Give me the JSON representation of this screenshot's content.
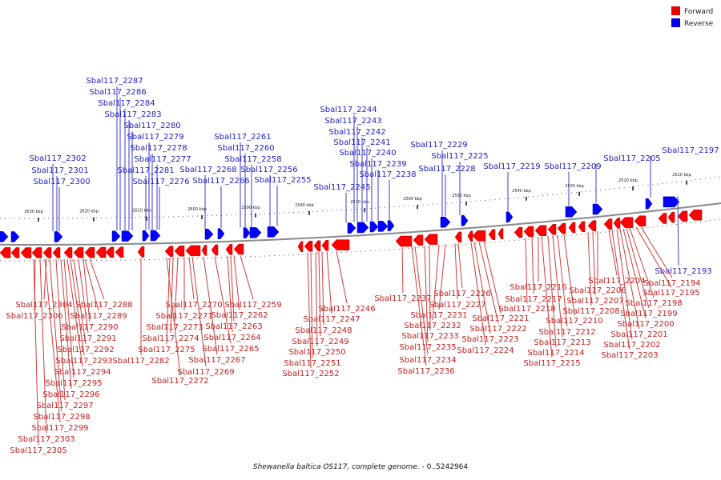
{
  "legend": {
    "forward_label": "Forward",
    "reverse_label": "Reverse",
    "forward_color": "#ff0000",
    "reverse_color": "#0000ff"
  },
  "caption": {
    "genome": "Shewanella baltica OS117, complete genome.",
    "range": "- 0..5242964"
  },
  "colors": {
    "forward_label": "#c81e1e",
    "reverse_label": "#1e1ec8",
    "backbone": "#8a8a8a",
    "pointer": "#3c3cd2",
    "pointer_forward": "#d23c3c"
  },
  "scale_labels": [
    "2630 kbp",
    "2620 kbp",
    "2610 kbp",
    "2600 kbp",
    "2590 kbp",
    "2580 kbp",
    "2570 kbp",
    "2560 kbp",
    "2550 kbp",
    "2540 kbp",
    "2530 kbp",
    "2520 kbp",
    "2510 kbp"
  ],
  "reverse_genes": [
    "Sbal117_2287",
    "Sbal117_2286",
    "Sbal117_2284",
    "Sbal117_2283",
    "Sbal117_2280",
    "Sbal117_2279",
    "Sbal117_2278",
    "Sbal117_2277",
    "Sbal117_2281",
    "Sbal117_2276",
    "Sbal117_2302",
    "Sbal117_2301",
    "Sbal117_2300",
    "Sbal117_2261",
    "Sbal117_2260",
    "Sbal117_2258",
    "Sbal117_2268",
    "Sbal117_2256",
    "Sbal117_2266",
    "Sbal117_2255",
    "Sbal117_2244",
    "Sbal117_2243",
    "Sbal117_2242",
    "Sbal117_2241",
    "Sbal117_2240",
    "Sbal117_2239",
    "Sbal117_2238",
    "Sbal117_2245",
    "Sbal117_2229",
    "Sbal117_2225",
    "Sbal117_2228",
    "Sbal117_2219",
    "Sbal117_2209",
    "Sbal117_2205",
    "Sbal117_2197",
    "Sbal117_2193"
  ],
  "forward_genes": [
    "Sbal117_2304",
    "Sbal117_2306",
    "Sbal117_2288",
    "Sbal117_2289",
    "Sbal117_2290",
    "Sbal117_2291",
    "Sbal117_2292",
    "Sbal117_2293",
    "Sbal117_2294",
    "Sbal117_2295",
    "Sbal117_2296",
    "Sbal117_2297",
    "Sbal117_2298",
    "Sbal117_2299",
    "Sbal117_2303",
    "Sbal117_2305",
    "Sbal117_2282",
    "Sbal117_2270",
    "Sbal117_2271",
    "Sbal117_2273",
    "Sbal117_2274",
    "Sbal117_2275",
    "Sbal117_2272",
    "Sbal117_2269",
    "Sbal117_2267",
    "Sbal117_2265",
    "Sbal117_2264",
    "Sbal117_2263",
    "Sbal117_2262",
    "Sbal117_2259",
    "Sbal117_2246",
    "Sbal117_2247",
    "Sbal117_2248",
    "Sbal117_2249",
    "Sbal117_2250",
    "Sbal117_2251",
    "Sbal117_2252",
    "Sbal117_2237",
    "Sbal117_2226",
    "Sbal117_2227",
    "Sbal117_2231",
    "Sbal117_2232",
    "Sbal117_2233",
    "Sbal117_2235",
    "Sbal117_2234",
    "Sbal117_2236",
    "Sbal117_2221",
    "Sbal117_2222",
    "Sbal117_2223",
    "Sbal117_2224",
    "Sbal117_2216",
    "Sbal117_2217",
    "Sbal117_2218",
    "Sbal117_2210",
    "Sbal117_2212",
    "Sbal117_2213",
    "Sbal117_2214",
    "Sbal117_2215",
    "Sbal117_2204",
    "Sbal117_2206",
    "Sbal117_2207",
    "Sbal117_2208",
    "Sbal117_2194",
    "Sbal117_2195",
    "Sbal117_2198",
    "Sbal117_2199",
    "Sbal117_2200",
    "Sbal117_2201",
    "Sbal117_2202",
    "Sbal117_2203"
  ]
}
